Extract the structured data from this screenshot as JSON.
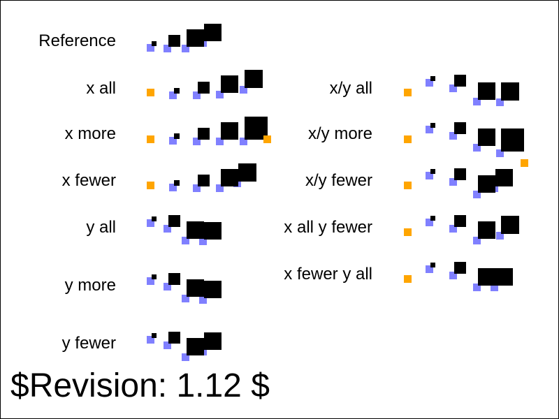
{
  "colors": {
    "background": "#ffffff",
    "frame": "#000000",
    "glyph": "#000000",
    "shadow": "#8080ff",
    "marker": "#ffa500"
  },
  "rows": [
    {
      "id": "reference",
      "label": "Reference"
    },
    {
      "id": "x-all",
      "label": "x all"
    },
    {
      "id": "x-more",
      "label": "x more"
    },
    {
      "id": "x-fewer",
      "label": "x fewer"
    },
    {
      "id": "y-all",
      "label": "y all"
    },
    {
      "id": "y-more",
      "label": "y more"
    },
    {
      "id": "y-fewer",
      "label": "y fewer"
    },
    {
      "id": "xy-all",
      "label": "x/y all"
    },
    {
      "id": "xy-more",
      "label": "x/y more"
    },
    {
      "id": "xy-fewer",
      "label": "x/y fewer"
    },
    {
      "id": "x-all-y-fewer",
      "label": "x all y fewer"
    },
    {
      "id": "x-fewer-y-all",
      "label": "x fewer y all"
    }
  ],
  "footer": {
    "revision": "$Revision: 1.12 $"
  }
}
